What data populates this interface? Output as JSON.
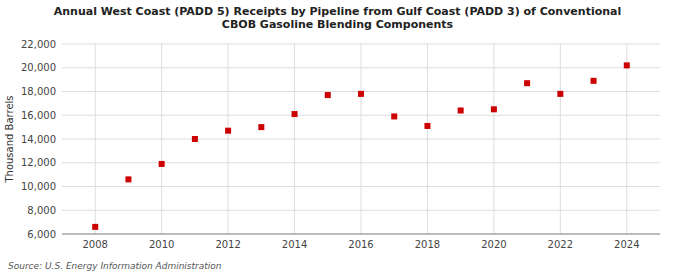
{
  "chart_data": {
    "type": "scatter",
    "title": "Annual West Coast (PADD 5) Receipts by Pipeline from Gulf Coast (PADD 3) of Conventional\nCBOB Gasoline Blending Components",
    "ylabel": "Thousand Barrels",
    "source": "Source: U.S. Energy Information Administration",
    "x": [
      2008,
      2009,
      2010,
      2011,
      2012,
      2013,
      2014,
      2015,
      2016,
      2017,
      2018,
      2019,
      2020,
      2021,
      2022,
      2023,
      2024
    ],
    "values": [
      6600,
      10600,
      11900,
      14000,
      14700,
      15000,
      16100,
      17700,
      17800,
      15900,
      15100,
      16400,
      16500,
      18700,
      17800,
      18900,
      20200
    ],
    "color": "#cc0000",
    "marker": "square",
    "grid": true,
    "xlim": [
      2007,
      2025
    ],
    "xticks": [
      2008,
      2010,
      2012,
      2014,
      2016,
      2018,
      2020,
      2022,
      2024
    ],
    "ylim": [
      6000,
      22000
    ],
    "yticks": [
      {
        "value": 6000,
        "label": "6,000"
      },
      {
        "value": 8000,
        "label": "8,000"
      },
      {
        "value": 10000,
        "label": "10,000"
      },
      {
        "value": 12000,
        "label": "12,000"
      },
      {
        "value": 14000,
        "label": "14,000"
      },
      {
        "value": 16000,
        "label": "16,000"
      },
      {
        "value": 18000,
        "label": "18,000"
      },
      {
        "value": 20000,
        "label": "20,000"
      },
      {
        "value": 22000,
        "label": "22,000"
      }
    ]
  }
}
